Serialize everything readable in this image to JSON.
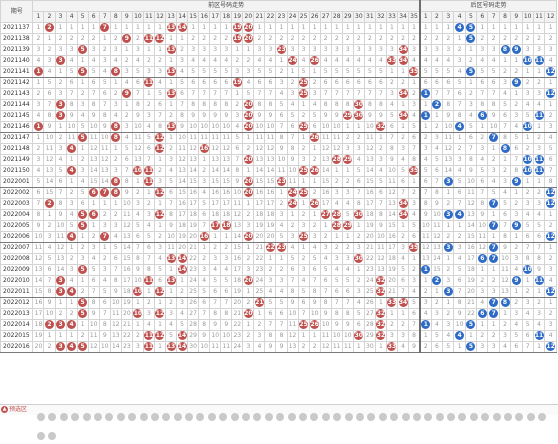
{
  "header": {
    "issue_label": "期号",
    "front_title": "前区号码走势",
    "back_title": "后区号码走势"
  },
  "front_numbers": [
    1,
    2,
    3,
    4,
    5,
    6,
    7,
    8,
    9,
    10,
    11,
    12,
    13,
    14,
    15,
    16,
    17,
    18,
    19,
    20,
    21,
    22,
    23,
    24,
    25,
    26,
    27,
    28,
    29,
    30,
    31,
    32,
    33,
    34,
    35
  ],
  "back_numbers": [
    1,
    2,
    3,
    4,
    5,
    6,
    7,
    8,
    9,
    10,
    11,
    12
  ],
  "rows": [
    {
      "issue": "2021137",
      "front": [
        2,
        7,
        13,
        14,
        19,
        20
      ],
      "back": [
        4,
        5
      ]
    },
    {
      "issue": "2021138",
      "front": [
        9,
        11,
        12,
        19,
        20
      ],
      "back": [
        5
      ]
    },
    {
      "issue": "2021139",
      "front": [
        5,
        13,
        23,
        34
      ],
      "back": [
        8,
        9
      ]
    },
    {
      "issue": "2021140",
      "front": [
        3,
        24,
        26,
        33,
        34
      ],
      "back": [
        10,
        11
      ]
    },
    {
      "issue": "2021141",
      "front": [
        1,
        5,
        8,
        13,
        35
      ],
      "back": [
        5,
        12
      ]
    },
    {
      "issue": "2021142",
      "front": [
        11,
        19,
        25
      ],
      "back": [
        9
      ]
    },
    {
      "issue": "2021143",
      "front": [
        9,
        13,
        25,
        34
      ],
      "back": [
        1,
        12
      ]
    },
    {
      "issue": "2021144",
      "front": [
        3,
        20,
        30
      ],
      "back": [
        2
      ]
    },
    {
      "issue": "2021145",
      "front": [
        3,
        20,
        29,
        30,
        34
      ],
      "back": [
        1,
        6,
        11
      ]
    },
    {
      "issue": "2021146",
      "front": [
        1,
        8,
        13,
        20,
        25,
        32
      ],
      "back": [
        4,
        10
      ]
    },
    {
      "issue": "2021147",
      "front": [
        5,
        8,
        12,
        26
      ],
      "back": [
        7
      ]
    },
    {
      "issue": "2021148",
      "front": [
        4,
        12,
        16
      ],
      "back": [
        8
      ]
    },
    {
      "issue": "2021149",
      "front": [
        20,
        28,
        29
      ],
      "back": [
        10,
        11
      ]
    },
    {
      "issue": "2021150",
      "front": [
        4,
        10,
        11,
        25,
        26,
        35
      ],
      "back": [
        10,
        11
      ]
    },
    {
      "issue": "2022001",
      "front": [
        8,
        11,
        20,
        23
      ],
      "back": [
        3,
        9
      ]
    },
    {
      "issue": "2022002",
      "front": [
        6,
        7,
        8,
        12,
        20,
        24,
        25
      ],
      "back": [
        12
      ]
    },
    {
      "issue": "2022003",
      "front": [
        2,
        24,
        26,
        34
      ],
      "back": [
        7,
        12
      ]
    },
    {
      "issue": "2022004",
      "front": [
        5,
        6,
        12,
        27,
        28,
        30,
        34
      ],
      "back": [
        3,
        4
      ]
    },
    {
      "issue": "2022005",
      "front": [
        5,
        17,
        18,
        28,
        29
      ],
      "back": [
        7,
        9
      ]
    },
    {
      "issue": "2022006",
      "front": [
        4,
        7,
        16,
        20,
        25
      ],
      "back": [
        12
      ]
    },
    {
      "issue": "2022007",
      "front": [
        22,
        23,
        35
      ],
      "back": [
        3,
        7
      ]
    },
    {
      "issue": "2022008",
      "front": [
        13,
        14,
        30
      ],
      "back": [
        6,
        7
      ]
    },
    {
      "issue": "2022009",
      "front": [
        5,
        14
      ],
      "back": [
        1,
        10
      ]
    },
    {
      "issue": "2022010",
      "front": [
        3,
        11,
        13,
        20,
        32
      ],
      "back": [
        2,
        9,
        11
      ]
    },
    {
      "issue": "2022011",
      "front": [
        3,
        4,
        10,
        12,
        32
      ],
      "back": [
        3,
        12
      ]
    },
    {
      "issue": "2022012",
      "front": [
        5,
        21,
        33,
        34
      ],
      "back": [
        7,
        8
      ]
    },
    {
      "issue": "2022013",
      "front": [
        5,
        10,
        12,
        20,
        32
      ],
      "back": [
        6,
        7
      ]
    },
    {
      "issue": "2022014",
      "front": [
        2,
        3,
        4,
        25,
        26,
        32
      ],
      "back": [
        1,
        5
      ]
    },
    {
      "issue": "2022015",
      "front": [
        11,
        12,
        14,
        30,
        32
      ],
      "back": [
        4,
        11
      ]
    },
    {
      "issue": "2022016",
      "front": [
        3,
        4,
        5,
        11,
        13,
        14,
        33
      ],
      "back": [
        5,
        12
      ]
    }
  ],
  "footer": {
    "preselect_label": "预选区",
    "preselect_icon": "caret-up-icon"
  },
  "colors": {
    "front_ball": "#c0504d",
    "back_ball": "#2e6bc6",
    "miss_text": "#999999",
    "header_bg": "#f3f3f3"
  }
}
